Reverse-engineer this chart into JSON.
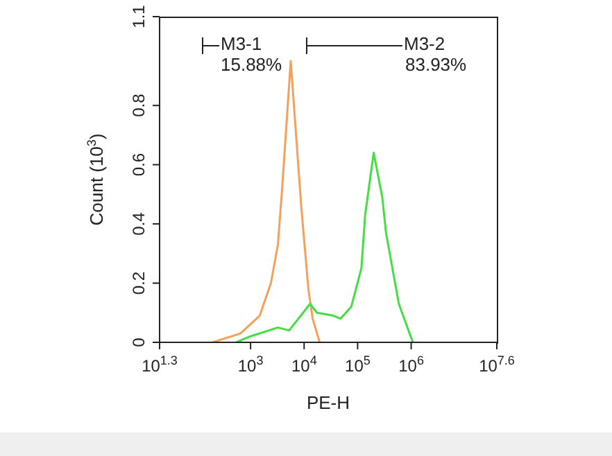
{
  "chart_data": {
    "type": "line",
    "xlabel": "PE-H",
    "ylabel": "Count (10$^{3}$)",
    "log": "x",
    "marker": "none",
    "xlim": [
      19.95,
      39810717
    ],
    "xticks": [
      {
        "value": 19.95,
        "label": "10$^{1.3}$"
      },
      {
        "value": 1000,
        "label": "10$^{3}$"
      },
      {
        "value": 10000,
        "label": "10$^{4}$"
      },
      {
        "value": 100000,
        "label": "10$^{5}$"
      },
      {
        "value": 1000000,
        "label": "10$^{6}$"
      },
      {
        "value": 39810717,
        "label": "10$^{7.6}$"
      }
    ],
    "ylim": [
      0,
      1.1
    ],
    "yticks": [
      0,
      0.2,
      0.4,
      0.6,
      0.8,
      1.1
    ],
    "series": [
      {
        "color": "#f5a05a",
        "x": [
          195,
          646,
          1479,
          2399,
          3236,
          3890,
          5623,
          8913,
          12020,
          14450,
          19500
        ],
        "values": [
          0,
          0.03,
          0.09,
          0.2,
          0.33,
          0.52,
          0.95,
          0.45,
          0.18,
          0.08,
          0
        ]
      },
      {
        "color": "#44dd44",
        "x": [
          537,
          977,
          3236,
          5248,
          12880,
          17380,
          35480,
          47860,
          75860,
          117500,
          138000,
          199500,
          288400,
          338800,
          589000,
          1072000
        ],
        "values": [
          0,
          0.02,
          0.05,
          0.04,
          0.13,
          0.1,
          0.09,
          0.08,
          0.12,
          0.25,
          0.43,
          0.64,
          0.49,
          0.37,
          0.13,
          0
        ]
      }
    ],
    "annotations": [
      "M3-1",
      "15.88%",
      "M3-2",
      "83.93%"
    ]
  }
}
